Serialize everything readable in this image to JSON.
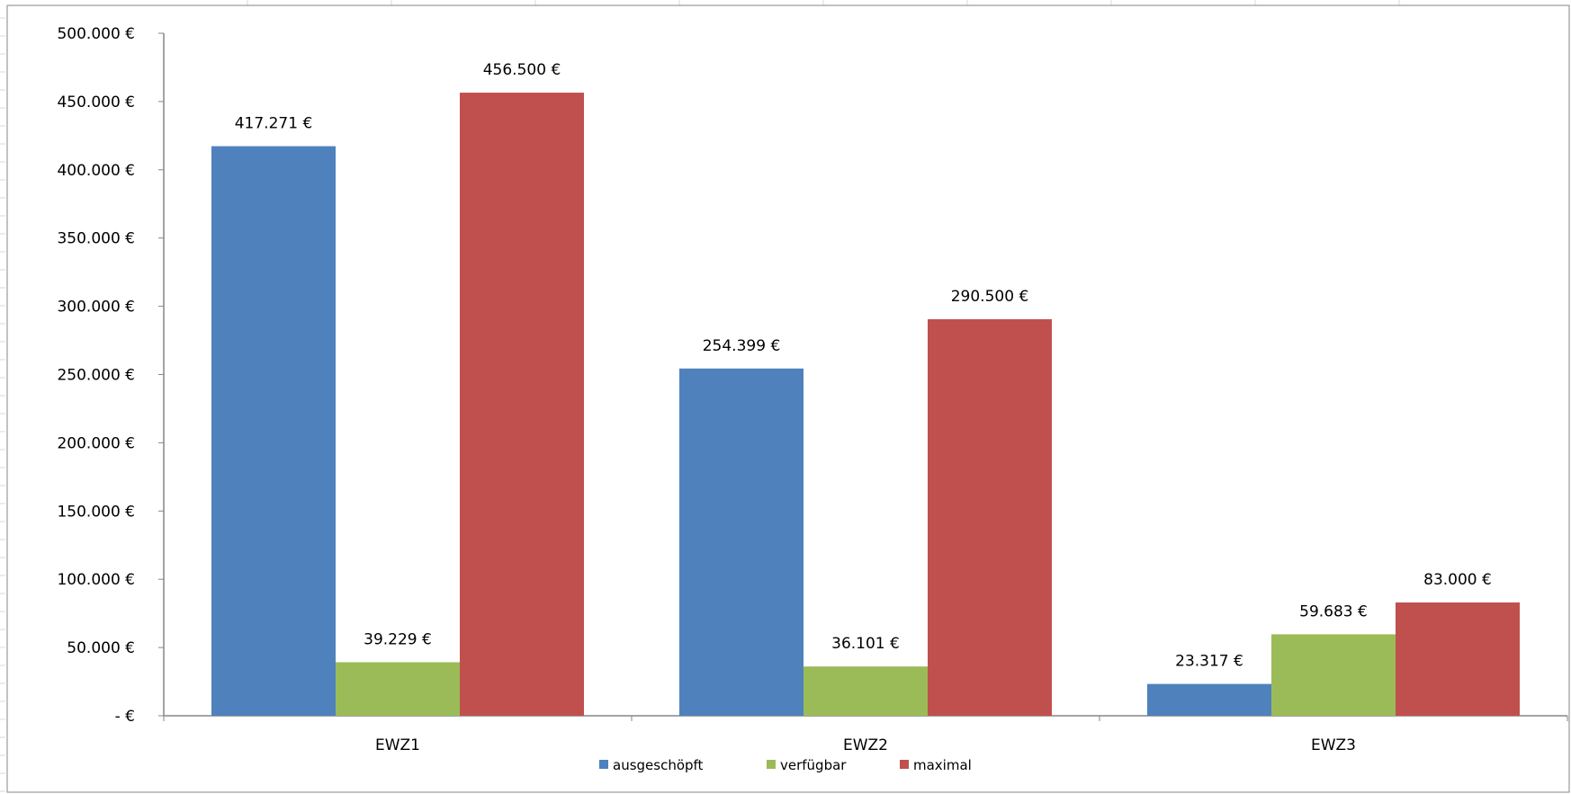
{
  "chart_data": {
    "type": "bar",
    "categories": [
      "EWZ1",
      "EWZ2",
      "EWZ3"
    ],
    "series": [
      {
        "name": "ausgeschöpft",
        "color": "#4F81BD",
        "values": [
          417271,
          254399,
          23317
        ],
        "labels": [
          "417.271 €",
          "254.399 €",
          "23.317 €"
        ]
      },
      {
        "name": "verfügbar",
        "color": "#9BBB59",
        "values": [
          39229,
          36101,
          59683
        ],
        "labels": [
          "39.229 €",
          "36.101 €",
          "59.683 €"
        ]
      },
      {
        "name": "maximal",
        "color": "#C0504D",
        "values": [
          456500,
          290500,
          83000
        ],
        "labels": [
          "456.500 €",
          "290.500 €",
          "83.000 €"
        ]
      }
    ],
    "ylim": [
      0,
      500000
    ],
    "yticks": [
      0,
      50000,
      100000,
      150000,
      200000,
      250000,
      300000,
      350000,
      400000,
      450000,
      500000
    ],
    "ytick_labels": [
      "-   €",
      "50.000 €",
      "100.000 €",
      "150.000 €",
      "200.000 €",
      "250.000 €",
      "300.000 €",
      "350.000 €",
      "400.000 €",
      "450.000 €",
      "500.000 €"
    ],
    "grid": false,
    "legend_position": "bottom",
    "title": "",
    "xlabel": "",
    "ylabel": ""
  }
}
